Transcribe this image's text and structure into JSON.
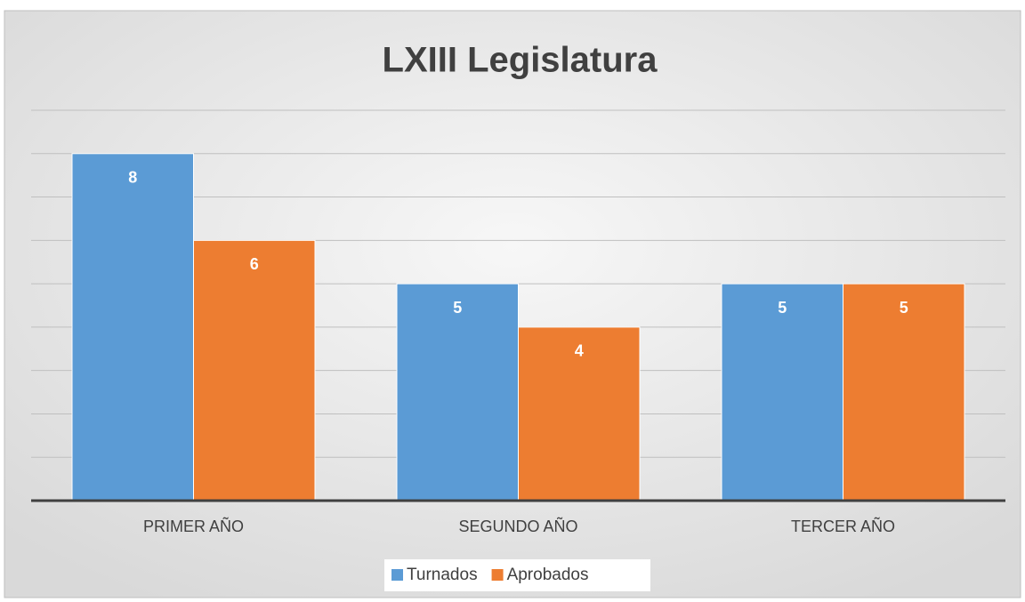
{
  "chart_data": {
    "type": "bar",
    "title": "LXIII Legislatura",
    "categories": [
      "PRIMER AÑO",
      "SEGUNDO AÑO",
      "TERCER AÑO"
    ],
    "series": [
      {
        "name": "Turnados",
        "color": "#5b9bd5",
        "values": [
          8,
          5,
          5
        ]
      },
      {
        "name": "Aprobados",
        "color": "#ed7d31",
        "values": [
          6,
          4,
          5
        ]
      }
    ],
    "ylim": [
      0,
      9
    ],
    "yticks": [
      0,
      1,
      2,
      3,
      4,
      5,
      6,
      7,
      8,
      9
    ],
    "grid": true,
    "legend": "bottom"
  }
}
